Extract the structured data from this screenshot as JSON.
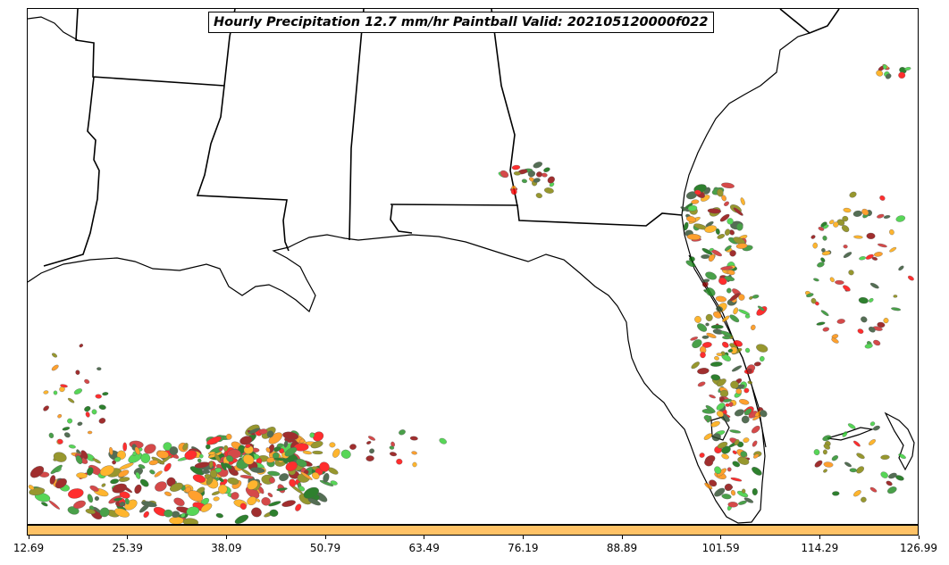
{
  "title": "Hourly Precipitation 12.7 mm/hr Paintball Valid: 202105120000f022",
  "colorbar": {
    "color": "#ffc266",
    "ticks": [
      "12.69",
      "25.39",
      "38.09",
      "50.79",
      "63.49",
      "76.19",
      "88.89",
      "101.59",
      "114.29",
      "126.99"
    ]
  },
  "member_colors": [
    "#ff0000",
    "#ff8c00",
    "#cc2222",
    "#228b22",
    "#006400",
    "#32cd32",
    "#808000",
    "#8b0000",
    "#ffa500",
    "#2f4f2f"
  ]
}
